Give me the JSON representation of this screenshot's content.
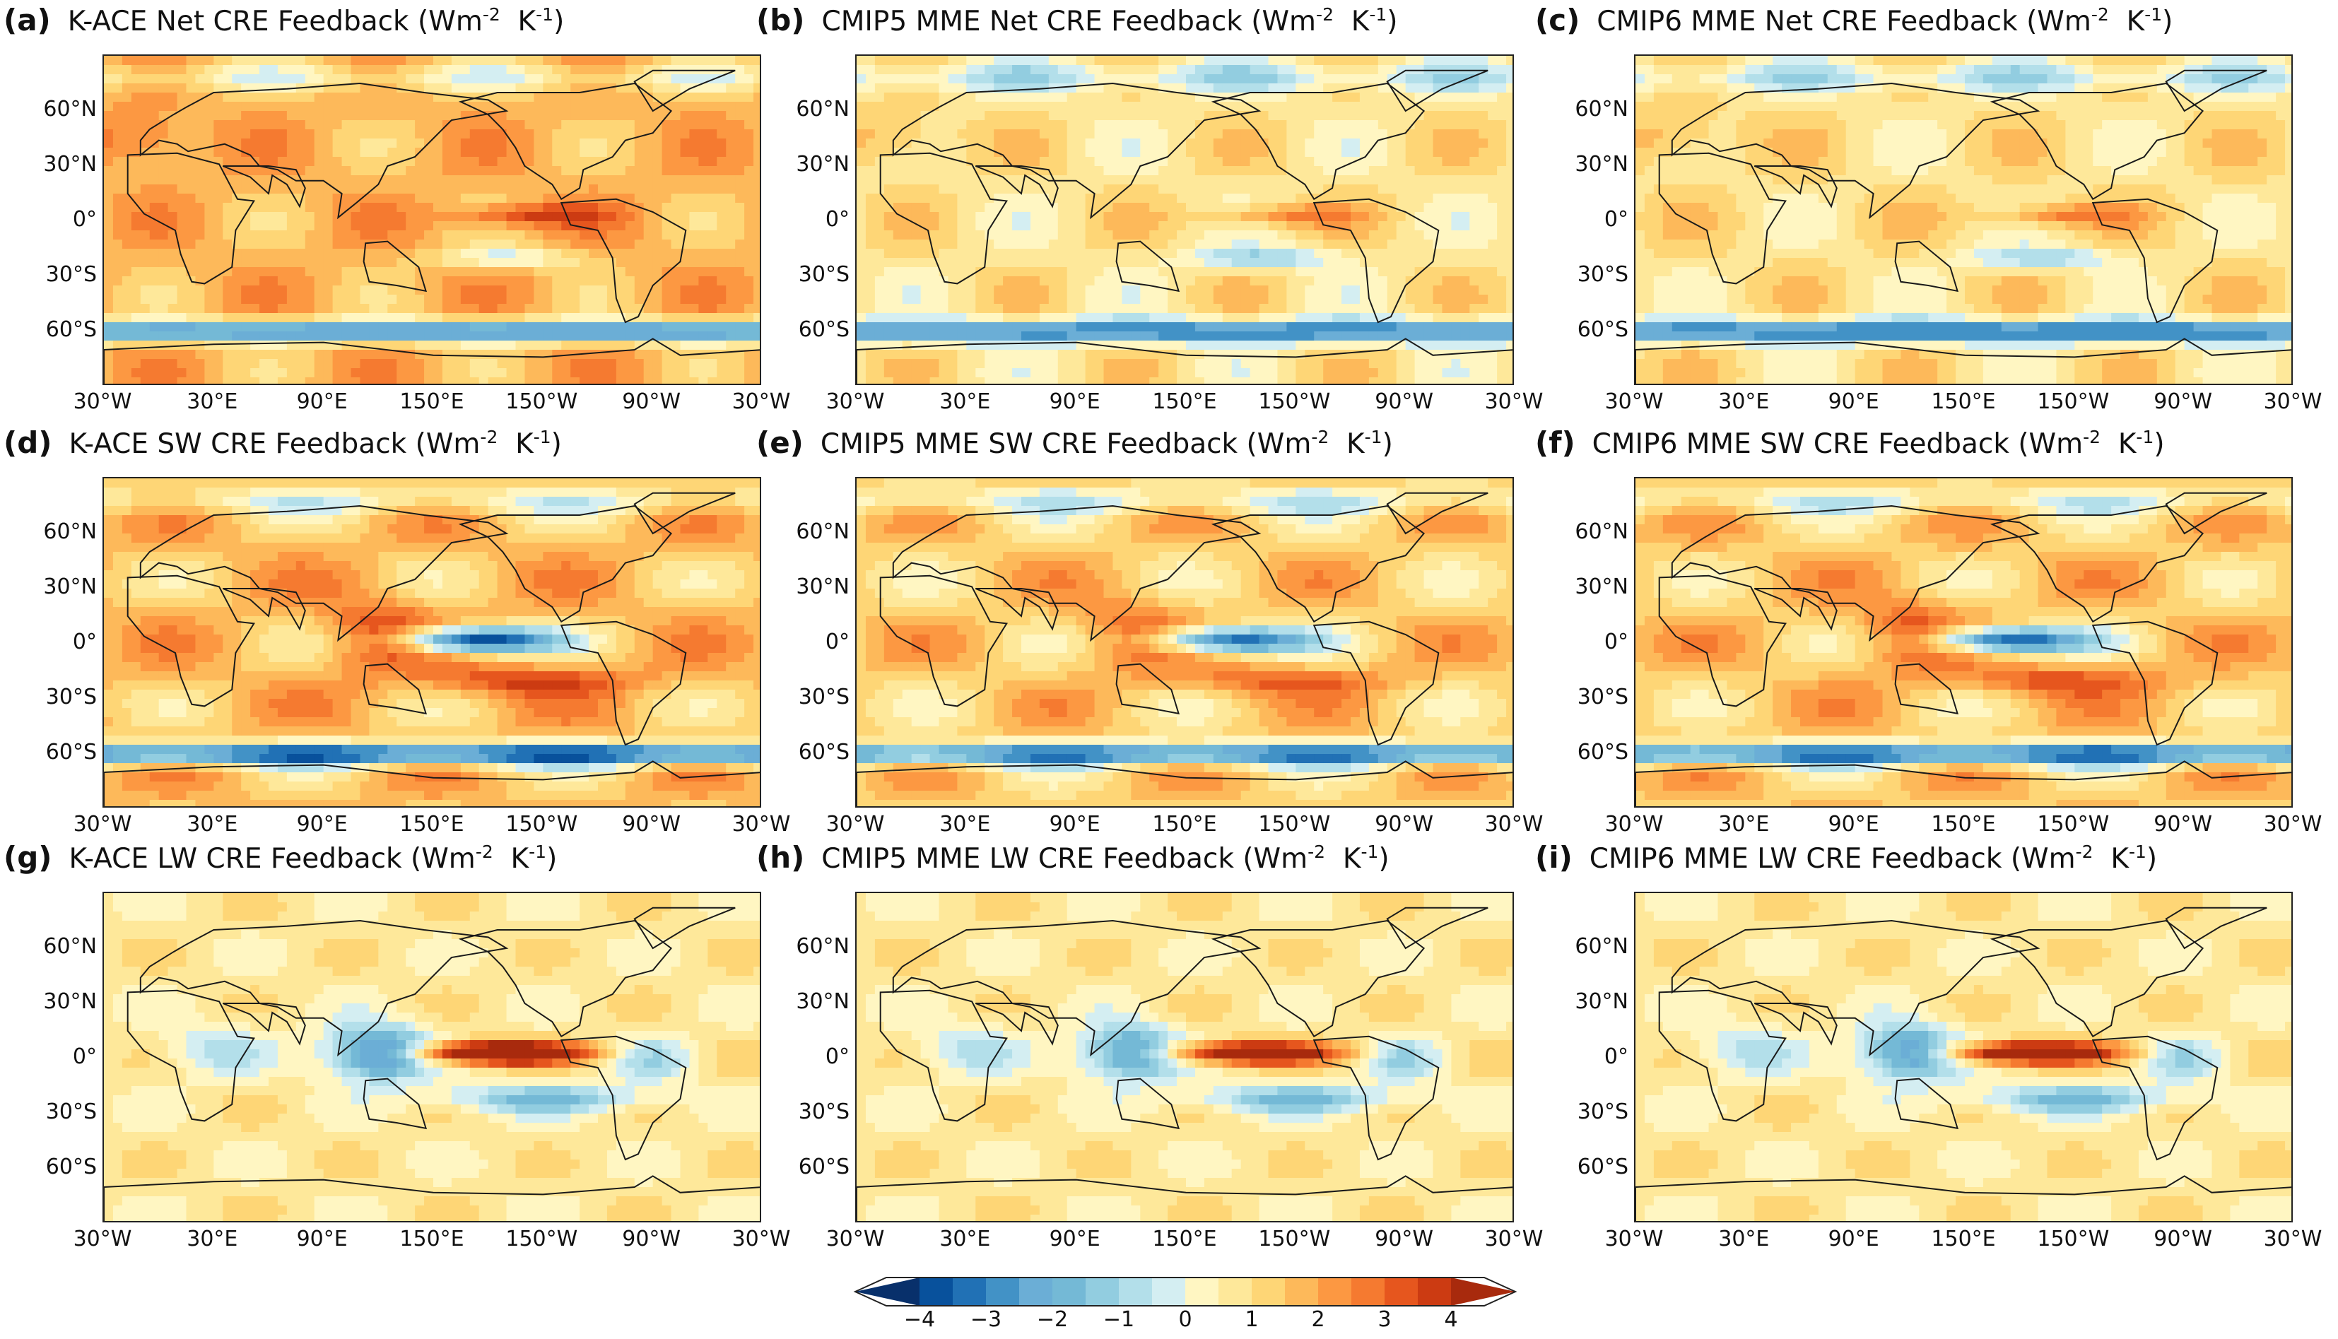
{
  "figure": {
    "units_label": "(Wm-2 K-1)",
    "latitude_labels": [
      "60°N",
      "30°N",
      "0°",
      "30°S",
      "60°S"
    ],
    "latitude_values": [
      60,
      30,
      0,
      -30,
      -60
    ],
    "longitude_labels": [
      "30°W",
      "30°E",
      "90°E",
      "150°E",
      "150°W",
      "90°W",
      "30°W"
    ],
    "longitude_values_east_of_30W": [
      0,
      60,
      120,
      180,
      240,
      300,
      360
    ],
    "lat_range": [
      -90,
      90
    ]
  },
  "panels": [
    {
      "letter": "(a)",
      "title": "K-ACE  Net CRE Feedback",
      "model": "K-ACE",
      "variable": "Net"
    },
    {
      "letter": "(b)",
      "title": "CMIP5 MME  Net CRE Feedback",
      "model": "CMIP5 MME",
      "variable": "Net"
    },
    {
      "letter": "(c)",
      "title": "CMIP6 MME  Net CRE Feedback",
      "model": "CMIP6 MME",
      "variable": "Net"
    },
    {
      "letter": "(d)",
      "title": "K-ACE  SW CRE Feedback",
      "model": "K-ACE",
      "variable": "SW"
    },
    {
      "letter": "(e)",
      "title": "CMIP5 MME  SW CRE Feedback",
      "model": "CMIP5 MME",
      "variable": "SW"
    },
    {
      "letter": "(f)",
      "title": "CMIP6 MME  SW CRE Feedback",
      "model": "CMIP6 MME",
      "variable": "SW"
    },
    {
      "letter": "(g)",
      "title": "K-ACE  LW CRE Feedback",
      "model": "K-ACE",
      "variable": "LW"
    },
    {
      "letter": "(h)",
      "title": "CMIP5 MME  LW CRE Feedback",
      "model": "CMIP5 MME",
      "variable": "LW"
    },
    {
      "letter": "(i)",
      "title": "CMIP6 MME  LW CRE Feedback",
      "model": "CMIP6 MME",
      "variable": "LW"
    }
  ],
  "colorbar": {
    "min": -4.5,
    "max": 4.5,
    "step": 0.5,
    "extend": "both",
    "tick_values": [
      -4,
      -3,
      -2,
      -1,
      0,
      1,
      2,
      3,
      4
    ],
    "tick_labels": [
      "−4",
      "−3",
      "−2",
      "−1",
      "0",
      "1",
      "2",
      "3",
      "4"
    ],
    "colors": [
      "#08306b",
      "#08519c",
      "#2171b5",
      "#4292c6",
      "#6baed6",
      "#74b9d6",
      "#92cde0",
      "#b3dfea",
      "#d4eef2",
      "#fff6c2",
      "#fee89a",
      "#fed676",
      "#fdb95a",
      "#fc9842",
      "#f57a30",
      "#e6561e",
      "#cc3b12",
      "#a82a0d"
    ]
  },
  "colors": {
    "ocean_base": "#fff6c2",
    "coastline": "#1a1a1a",
    "frame": "#222222"
  }
}
